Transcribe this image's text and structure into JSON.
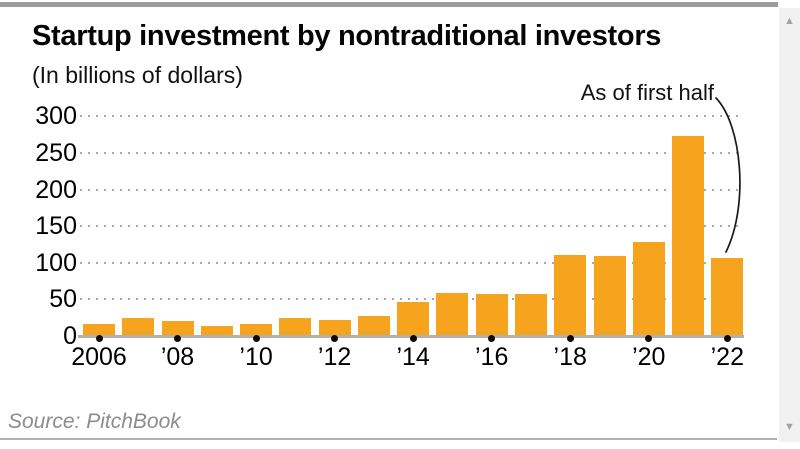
{
  "title": "Startup investment by nontraditional investors",
  "subtitle": "(In billions of dollars)",
  "annotation": "As of first half",
  "source": "Source: PitchBook",
  "icons": {
    "scroll_up": "▲",
    "scroll_down": "▼"
  },
  "colors": {
    "bar": "#F6A41D",
    "grid_dot": "#a8a8a8",
    "axis_line": "#b0b0b0",
    "tick_dot": "#0a0a0a",
    "annotation_line": "#1a1a1a",
    "top_bar": "#9c9c9c",
    "source_text": "#8c8c8c",
    "scrollbar_track": "#f1f1f1",
    "scrollbar_arrow": "#a3a3a3"
  },
  "chart_data": {
    "type": "bar",
    "title": "Startup investment by nontraditional investors",
    "subtitle": "(In billions of dollars)",
    "categories": [
      2006,
      2007,
      2008,
      2009,
      2010,
      2011,
      2012,
      2013,
      2014,
      2015,
      2016,
      2017,
      2018,
      2019,
      2020,
      2021,
      2022
    ],
    "values": [
      17,
      24,
      21,
      14,
      16,
      25,
      22,
      27,
      47,
      59,
      57,
      57,
      110,
      109,
      128,
      273,
      107
    ],
    "x_tick_labels": [
      "2006",
      "’08",
      "’10",
      "’12",
      "’14",
      "’16",
      "’18",
      "’20",
      "’22"
    ],
    "y_ticks": [
      0,
      50,
      100,
      150,
      200,
      250,
      300
    ],
    "ylim": [
      0,
      300
    ],
    "xlabel": "",
    "ylabel": "Billions of dollars",
    "grid": "horizontal dotted",
    "legend": "none",
    "annotation": {
      "text": "As of first half",
      "points_to_category": 2022,
      "points_to_value": 107
    }
  }
}
